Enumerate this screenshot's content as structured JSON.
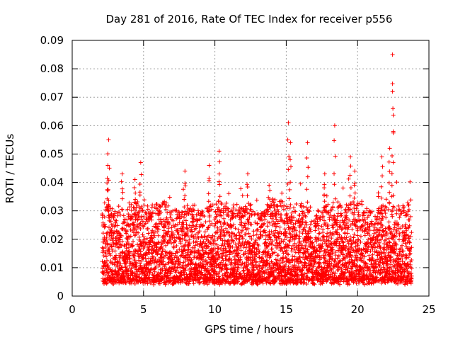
{
  "chart_data": {
    "type": "scatter",
    "title": "Day 281 of 2016, Rate Of TEC Index for receiver p556",
    "xlabel": "GPS time / hours",
    "ylabel": "ROTI / TECUs",
    "xlim": [
      0,
      25
    ],
    "ylim": [
      0,
      0.09
    ],
    "xticks": [
      0,
      5,
      10,
      15,
      20,
      25
    ],
    "xtick_labels": [
      "0",
      "5",
      "10",
      "15",
      "20",
      "25"
    ],
    "yticks": [
      0,
      0.01,
      0.02,
      0.03,
      0.04,
      0.05,
      0.06,
      0.07,
      0.08,
      0.09
    ],
    "ytick_labels": [
      "0",
      "0.01",
      "0.02",
      "0.03",
      "0.04",
      "0.05",
      "0.06",
      "0.07",
      "0.08",
      "0.09"
    ],
    "grid": true,
    "marker": "+",
    "series": [
      {
        "name": "ROTI",
        "color": "#ff0000",
        "x_range": [
          2.1,
          23.8
        ],
        "typical_range": [
          0.005,
          0.03
        ],
        "baseline": 0.012,
        "peaks": [
          {
            "x": 2.55,
            "y": 0.055
          },
          {
            "x": 2.5,
            "y": 0.046
          },
          {
            "x": 3.5,
            "y": 0.043
          },
          {
            "x": 4.4,
            "y": 0.041
          },
          {
            "x": 4.8,
            "y": 0.047
          },
          {
            "x": 7.9,
            "y": 0.044
          },
          {
            "x": 9.6,
            "y": 0.046
          },
          {
            "x": 10.3,
            "y": 0.051
          },
          {
            "x": 12.3,
            "y": 0.043
          },
          {
            "x": 13.8,
            "y": 0.039
          },
          {
            "x": 15.15,
            "y": 0.061
          },
          {
            "x": 15.3,
            "y": 0.054
          },
          {
            "x": 16.5,
            "y": 0.054
          },
          {
            "x": 17.7,
            "y": 0.043
          },
          {
            "x": 18.4,
            "y": 0.06
          },
          {
            "x": 19.5,
            "y": 0.049
          },
          {
            "x": 19.8,
            "y": 0.044
          },
          {
            "x": 21.7,
            "y": 0.049
          },
          {
            "x": 22.25,
            "y": 0.052
          },
          {
            "x": 22.45,
            "y": 0.085
          },
          {
            "x": 22.45,
            "y": 0.072
          }
        ]
      }
    ]
  }
}
